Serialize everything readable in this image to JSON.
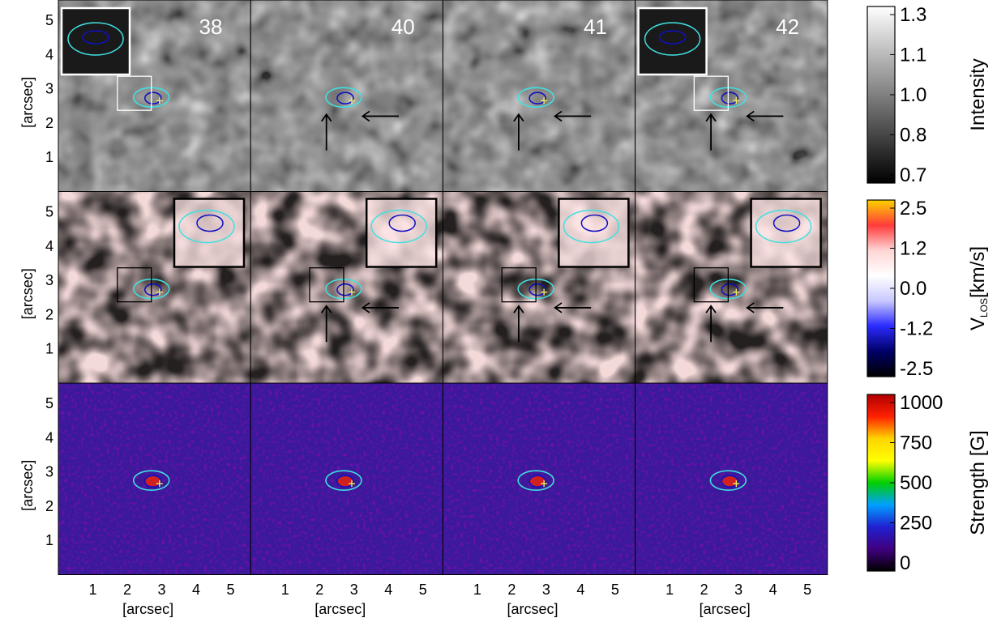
{
  "frames": [
    "38",
    "40",
    "41",
    "42"
  ],
  "rows": [
    {
      "id": "intensity",
      "colorbar": {
        "title": "Intensity",
        "ticks": [
          "1.3",
          "1.1",
          "1.0",
          "0.8",
          "0.7"
        ],
        "colors": [
          "#ffffff",
          "#000000"
        ]
      }
    },
    {
      "id": "velocity",
      "colorbar": {
        "title_main": "V",
        "title_sub": "LOS",
        "title_rest": "[km/s]",
        "ticks": [
          "2.5",
          "1.2",
          "0.0",
          "-1.2",
          "-2.5"
        ],
        "colors": [
          "#ffd200",
          "#ff3b3b",
          "#ffd5d5",
          "#ffffff",
          "#c8c8ff",
          "#2a2aff",
          "#000066",
          "#000000"
        ]
      }
    },
    {
      "id": "strength",
      "colorbar": {
        "title": "Strength [G]",
        "ticks": [
          "1000",
          "750",
          "500",
          "250",
          "0"
        ],
        "colors": [
          "#b00000",
          "#ff2000",
          "#ffd400",
          "#ffff00",
          "#00d000",
          "#00a0ff",
          "#2020d0",
          "#400080",
          "#000000"
        ]
      }
    }
  ],
  "axes": {
    "ylabel": "[arcsec]",
    "xlabel": "[arcsec]",
    "yticks": [
      "5",
      "4",
      "3",
      "2",
      "1"
    ],
    "xticks": [
      "1",
      "2",
      "3",
      "4",
      "5"
    ]
  },
  "colors": {
    "contour_outer": "#40e0e0",
    "contour_inner": "#1010c0",
    "cross": "#f0f060"
  }
}
